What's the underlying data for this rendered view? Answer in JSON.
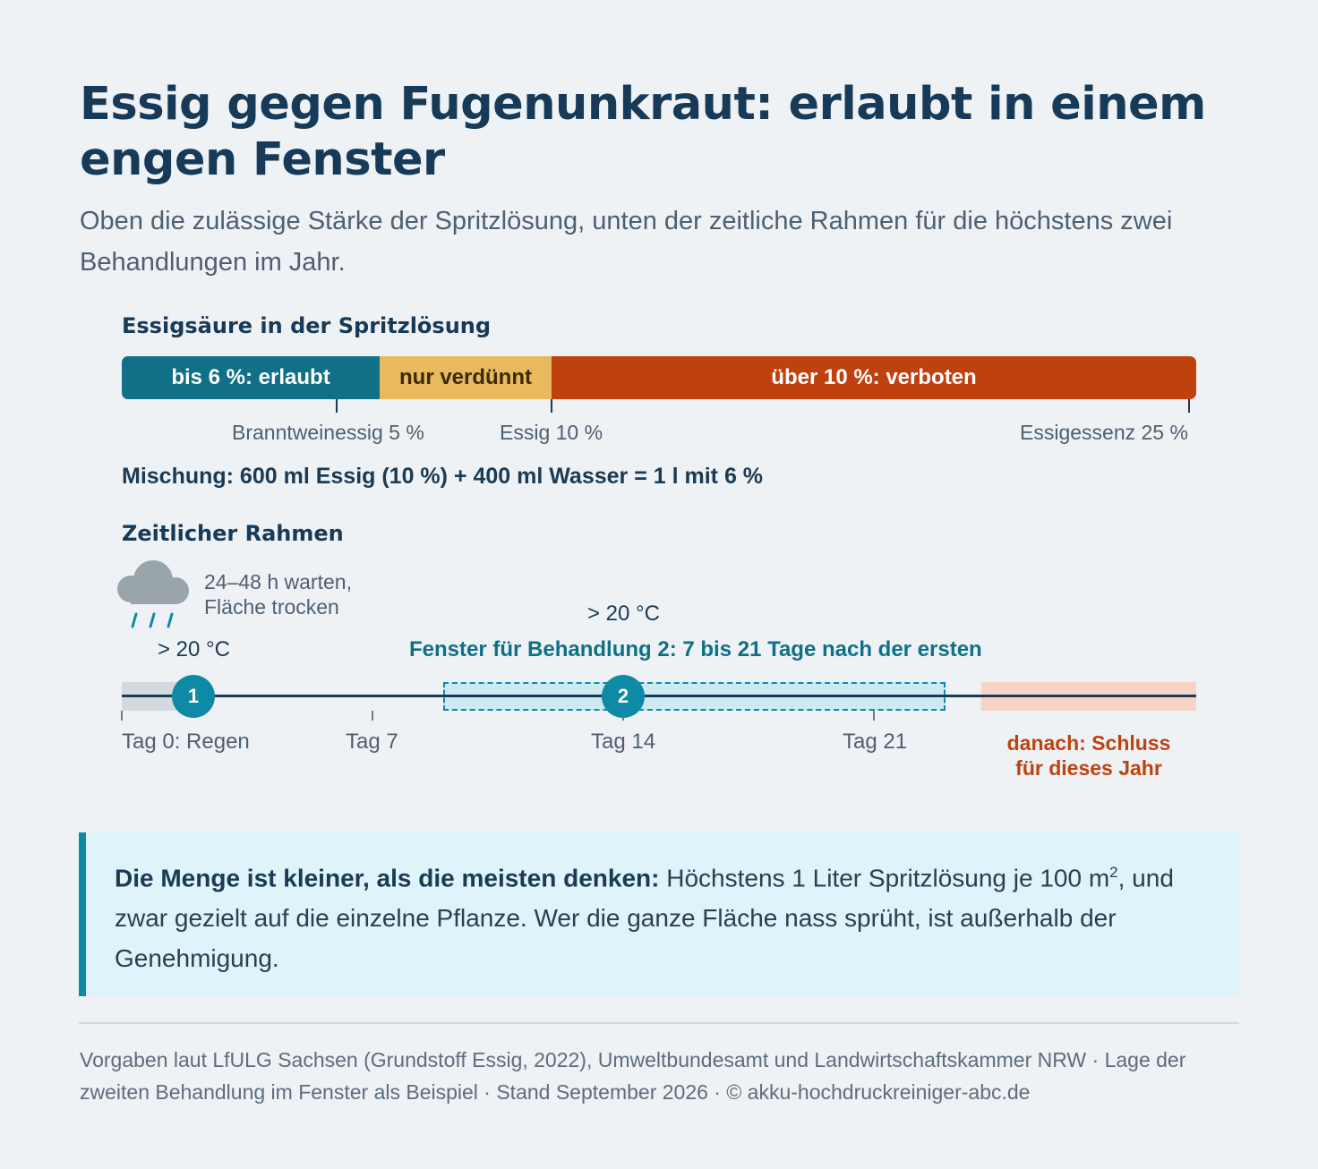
{
  "title": "Essig gegen Fugenunkraut: erlaubt in einem engen Fenster",
  "subtitle": "Oben die zulässige Stärke der Spritzlösung, unten der zeitliche Rahmen für die höchstens zwei Behandlungen im Jahr.",
  "concentration": {
    "heading": "Essigsäure in der Spritzlösung",
    "segments": [
      {
        "label": "bis 6 %: erlaubt",
        "color": "#0f7087",
        "from_percent": 0,
        "to_percent": 6
      },
      {
        "label": "nur verdünnt",
        "color": "#e8b95e",
        "from_percent": 6,
        "to_percent": 10
      },
      {
        "label": "über 10 %: verboten",
        "color": "#bf420e",
        "from_percent": 10,
        "to_percent": 25
      }
    ],
    "ticks": [
      {
        "label": "Branntweinessig 5 %",
        "percent": 5
      },
      {
        "label": "Essig 10 %",
        "percent": 10
      },
      {
        "label": "Essigessenz 25 %",
        "percent": 25
      }
    ],
    "mix": "Mischung: 600 ml Essig (10 %) + 400 ml Wasser = 1 l mit 6 %"
  },
  "timeline": {
    "heading": "Zeitlicher Rahmen",
    "rain_note_line1": "24–48 h warten,",
    "rain_note_line2": "Fläche trocken",
    "rain_icon": "rain-cloud-icon",
    "temp_1": "> 20 °C",
    "temp_2": "> 20 °C",
    "window_label": "Fenster für Behandlung 2: 7 bis 21 Tage nach der ersten",
    "window_days": [
      7,
      21
    ],
    "markers": [
      {
        "label": "1",
        "day": 0
      },
      {
        "label": "2",
        "day": 14
      }
    ],
    "days": [
      {
        "label": "Tag 0: Regen",
        "day": 0
      },
      {
        "label": "Tag 7",
        "day": 7
      },
      {
        "label": "Tag 14",
        "day": 14
      },
      {
        "label": "Tag 21",
        "day": 21
      }
    ],
    "after_line1": "danach: Schluss",
    "after_line2": "für dieses Jahr",
    "colors": {
      "line": "#1b3a53",
      "window": "#0f8aa6",
      "after": "#f6d3c4",
      "rain_zone": "#d3d9de"
    }
  },
  "callout": {
    "bold": "Die Menge ist kleiner, als die meisten denken:",
    "text_before_sup": " Höchstens 1 Liter Spritzlösung je 100 m",
    "sup": "2",
    "text_after_sup": ", und zwar gezielt auf die einzelne Pflanze. Wer die ganze Fläche nass sprüht, ist außerhalb der Genehmigung."
  },
  "source": "Vorgaben laut LfULG Sachsen (Grundstoff Essig, 2022), Umweltbundesamt und Landwirtschaftskammer NRW · Lage der zweiten Behandlung im Fenster als Beispiel · Stand September 2026 · © akku-hochdruckreiniger-abc.de"
}
